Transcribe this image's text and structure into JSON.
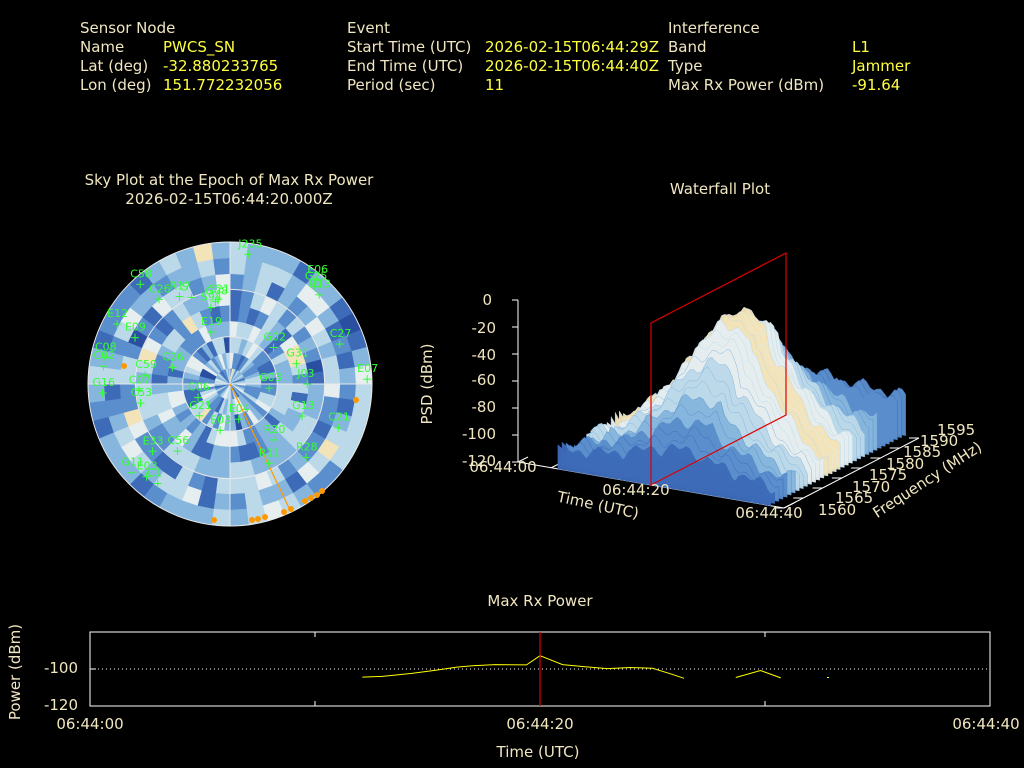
{
  "header": {
    "sensor": {
      "heading": "Sensor Node",
      "rows": [
        {
          "label": "Name",
          "value": "PWCS_SN"
        },
        {
          "label": "Lat (deg)",
          "value": "-32.880233765"
        },
        {
          "label": "Lon (deg)",
          "value": "151.772232056"
        }
      ]
    },
    "event": {
      "heading": "Event",
      "rows": [
        {
          "label": "Start Time (UTC)",
          "value": "2026-02-15T06:44:29Z"
        },
        {
          "label": "End Time (UTC)",
          "value": "2026-02-15T06:44:40Z"
        },
        {
          "label": "Period (sec)",
          "value": "11"
        }
      ]
    },
    "interference": {
      "heading": "Interference",
      "rows": [
        {
          "label": "Band",
          "value": "L1"
        },
        {
          "label": "Type",
          "value": "Jammer"
        },
        {
          "label": "Max Rx Power (dBm)",
          "value": "-91.64"
        }
      ]
    }
  },
  "colors": {
    "text": "#f0e6c0",
    "value": "#ffff40",
    "satellite": "#33ff33",
    "marker": "#ff9900",
    "cursor": "#dd0000",
    "trace": "#ffff00",
    "axis": "#ffffff",
    "ring": "#e8e8e8"
  },
  "chart_data": [
    {
      "type": "polar",
      "title": "Sky Plot at the Epoch of Max Rx Power",
      "subtitle": "2026-02-15T06:44:20.000Z",
      "satellites": [
        {
          "id": "J235",
          "az": 8,
          "el": 7
        },
        {
          "id": "C58",
          "az": 318,
          "el": 5
        },
        {
          "id": "E06",
          "az": 40,
          "el": 4
        },
        {
          "id": "G25",
          "az": 41,
          "el": 8
        },
        {
          "id": "R13",
          "az": 45,
          "el": 10
        },
        {
          "id": "C26",
          "az": 320,
          "el": 20
        },
        {
          "id": "R17",
          "az": 330,
          "el": 26
        },
        {
          "id": "S",
          "az": 336,
          "el": 30
        },
        {
          "id": "G08",
          "az": 350,
          "el": 37
        },
        {
          "id": "S94",
          "az": 346,
          "el": 40
        },
        {
          "id": "C21",
          "az": 352,
          "el": 36
        },
        {
          "id": "E12",
          "az": 298,
          "el": 9
        },
        {
          "id": "C08",
          "az": 282,
          "el": 9
        },
        {
          "id": "E09",
          "az": 296,
          "el": 23
        },
        {
          "id": "C02",
          "az": 278,
          "el": 9
        },
        {
          "id": "E19",
          "az": 340,
          "el": 55
        },
        {
          "id": "C59",
          "az": 276,
          "el": 36
        },
        {
          "id": "C07",
          "az": 266,
          "el": 32
        },
        {
          "id": "C26b",
          "az": 286,
          "el": 52
        },
        {
          "id": "G02",
          "az": 50,
          "el": 54
        },
        {
          "id": "C27",
          "az": 70,
          "el": 16
        },
        {
          "id": "G31",
          "az": 73,
          "el": 46
        },
        {
          "id": "G16",
          "az": 266,
          "el": 9
        },
        {
          "id": "C53",
          "az": 258,
          "el": 32
        },
        {
          "id": "E07",
          "az": 88,
          "el": 3
        },
        {
          "id": "C06",
          "az": 247,
          "el": 68
        },
        {
          "id": "G03",
          "az": 96,
          "el": 65
        },
        {
          "id": "J03",
          "az": 90,
          "el": 41
        },
        {
          "id": "G13",
          "az": 114,
          "el": 40
        },
        {
          "id": "G21",
          "az": 224,
          "el": 62
        },
        {
          "id": "E04",
          "az": 166,
          "el": 67
        },
        {
          "id": "E03",
          "az": 192,
          "el": 60
        },
        {
          "id": "E33",
          "az": 229,
          "el": 25
        },
        {
          "id": "C56",
          "az": 218,
          "el": 36
        },
        {
          "id": "R20",
          "az": 142,
          "el": 45
        },
        {
          "id": "C21b",
          "az": 112,
          "el": 16
        },
        {
          "id": "R11",
          "az": 154,
          "el": 34
        },
        {
          "id": "R28",
          "az": 134,
          "el": 23
        },
        {
          "id": "C1",
          "az": 216,
          "el": 12
        },
        {
          "id": "E03b",
          "az": 222,
          "el": 11
        },
        {
          "id": "G11",
          "az": 228,
          "el": 6
        }
      ]
    },
    {
      "type": "surface3d",
      "title": "Waterfall Plot",
      "xlabel": "Time (UTC)",
      "ylabel": "Frequency (MHz)",
      "zlabel": "PSD (dBm)",
      "x_ticks": [
        "06:44:00",
        "06:44:20",
        "06:44:40"
      ],
      "y_ticks": [
        1560,
        1565,
        1570,
        1575,
        1580,
        1585,
        1590,
        1595
      ],
      "z_ticks": [
        0,
        -20,
        -40,
        -60,
        -80,
        -100,
        -120
      ],
      "zlim": [
        -120,
        0
      ],
      "marker_time": "06:44:20"
    },
    {
      "type": "line",
      "title": "Max Rx Power",
      "xlabel": "Time (UTC)",
      "ylabel": "Power (dBm)",
      "x_ticks": [
        "06:44:00",
        "06:44:20",
        "06:44:40"
      ],
      "y_ticks": [
        -100,
        -120
      ],
      "xlim": [
        0,
        40
      ],
      "ylim": [
        -120,
        -80
      ],
      "marker_x": 20,
      "series": [
        {
          "segments": [
            [
              [
                12.1,
                -104.4
              ],
              [
                13.0,
                -104.0
              ],
              [
                14.3,
                -102.4
              ],
              [
                15.4,
                -100.6
              ],
              [
                16.3,
                -99.0
              ],
              [
                17.0,
                -98.2
              ],
              [
                18.0,
                -97.6
              ],
              [
                19.4,
                -97.8
              ],
              [
                20.0,
                -92.8
              ],
              [
                21.0,
                -97.6
              ],
              [
                22.0,
                -98.8
              ],
              [
                23.0,
                -99.8
              ],
              [
                24.0,
                -99.2
              ],
              [
                25.0,
                -99.6
              ],
              [
                25.8,
                -102.6
              ],
              [
                26.4,
                -105.0
              ]
            ],
            [
              [
                28.7,
                -104.6
              ],
              [
                29.8,
                -100.8
              ],
              [
                30.7,
                -104.8
              ]
            ],
            [
              [
                32.8,
                -104.6
              ]
            ]
          ]
        }
      ]
    }
  ]
}
